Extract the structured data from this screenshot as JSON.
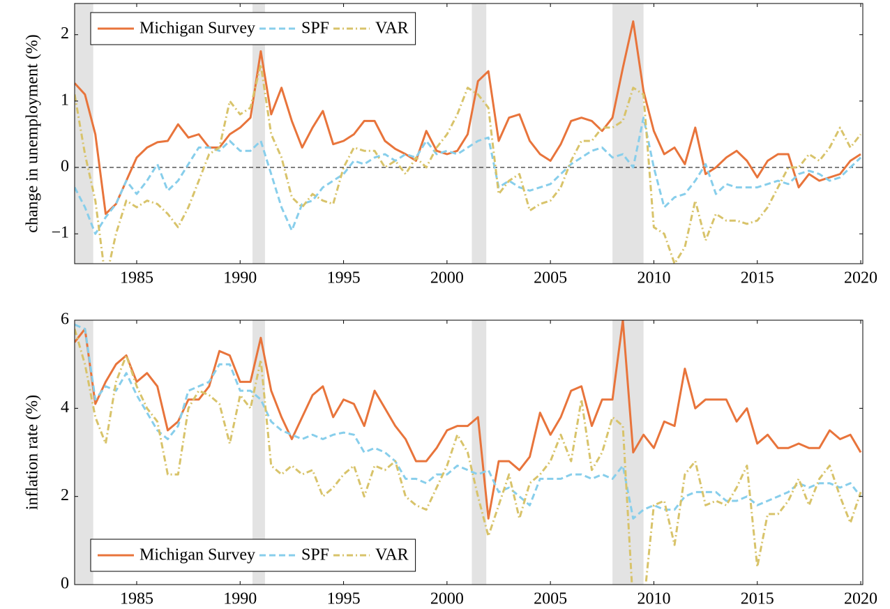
{
  "chart_data": [
    {
      "type": "line",
      "ylabel": "change in unemployment (%)",
      "legend": "upper left",
      "hline": 0,
      "xlim": [
        1982,
        2020.1
      ],
      "xticks": [
        1985,
        1990,
        1995,
        2000,
        2005,
        2010,
        2015,
        2020
      ],
      "ylim": [
        -1.45,
        2.47
      ],
      "yticks": [
        {
          "value": -1,
          "label": "−1"
        },
        0,
        1,
        2
      ],
      "recessions": [
        [
          1982,
          1982.9
        ],
        [
          1990.6,
          1991.2
        ],
        [
          2001.2,
          2001.9
        ],
        [
          2008,
          2009.5
        ]
      ],
      "x": [
        1982,
        1982.5,
        1983,
        1983.5,
        1984,
        1984.5,
        1985,
        1985.5,
        1986,
        1986.5,
        1987,
        1987.5,
        1988,
        1988.5,
        1989,
        1989.5,
        1990,
        1990.5,
        1991,
        1991.5,
        1992,
        1992.5,
        1993,
        1993.5,
        1994,
        1994.5,
        1995,
        1995.5,
        1996,
        1996.5,
        1997,
        1997.5,
        1998,
        1998.5,
        1999,
        1999.5,
        2000,
        2000.5,
        2001,
        2001.5,
        2002,
        2002.5,
        2003,
        2003.5,
        2004,
        2004.5,
        2005,
        2005.5,
        2006,
        2006.5,
        2007,
        2007.5,
        2008,
        2008.5,
        2009,
        2009.5,
        2010,
        2010.5,
        2011,
        2011.5,
        2012,
        2012.5,
        2013,
        2013.5,
        2014,
        2014.5,
        2015,
        2015.5,
        2016,
        2016.5,
        2017,
        2017.5,
        2018,
        2018.5,
        2019,
        2019.5,
        2020
      ],
      "series": [
        {
          "name": "Michigan Survey",
          "color": "#e8743b",
          "dash": "solid",
          "values": [
            1.27,
            1.1,
            0.5,
            -0.7,
            -0.55,
            -0.2,
            0.15,
            0.3,
            0.38,
            0.4,
            0.65,
            0.45,
            0.5,
            0.3,
            0.3,
            0.5,
            0.6,
            0.75,
            1.75,
            0.8,
            1.2,
            0.7,
            0.3,
            0.6,
            0.85,
            0.35,
            0.4,
            0.5,
            0.7,
            0.7,
            0.4,
            0.28,
            0.2,
            0.1,
            0.55,
            0.25,
            0.2,
            0.25,
            0.5,
            1.3,
            1.45,
            0.4,
            0.75,
            0.8,
            0.4,
            0.2,
            0.1,
            0.35,
            0.7,
            0.75,
            0.7,
            0.55,
            0.75,
            1.5,
            2.2,
            1.15,
            0.55,
            0.2,
            0.3,
            0.05,
            0.6,
            -0.1,
            0.0,
            0.15,
            0.25,
            0.1,
            -0.15,
            0.1,
            0.2,
            0.2,
            -0.3,
            -0.1,
            -0.2,
            -0.15,
            -0.1,
            0.1,
            0.2
          ]
        },
        {
          "name": "SPF",
          "color": "#87ceeb",
          "dash": "dashed",
          "values": [
            -0.3,
            -0.6,
            -1.0,
            -0.75,
            -0.55,
            -0.2,
            -0.4,
            -0.2,
            0.05,
            -0.35,
            -0.2,
            0.05,
            0.3,
            0.3,
            0.25,
            0.4,
            0.25,
            0.25,
            0.4,
            -0.1,
            -0.6,
            -0.95,
            -0.55,
            -0.5,
            -0.3,
            -0.2,
            -0.1,
            0.1,
            0.05,
            0.15,
            0.2,
            0.1,
            0.2,
            0.15,
            0.4,
            0.2,
            0.25,
            0.2,
            0.3,
            0.4,
            0.45,
            -0.3,
            -0.2,
            -0.3,
            -0.35,
            -0.3,
            -0.25,
            -0.1,
            0.05,
            0.15,
            0.25,
            0.3,
            0.15,
            0.2,
            0.0,
            0.75,
            0.0,
            -0.6,
            -0.45,
            -0.4,
            -0.2,
            0.05,
            -0.4,
            -0.25,
            -0.3,
            -0.3,
            -0.3,
            -0.25,
            -0.2,
            -0.25,
            -0.1,
            -0.05,
            -0.1,
            -0.2,
            -0.15,
            0.0,
            0.15
          ]
        },
        {
          "name": "VAR",
          "color": "#d8c36a",
          "dash": "dashdot",
          "values": [
            1.1,
            0.2,
            -0.5,
            -1.7,
            -1.0,
            -0.5,
            -0.6,
            -0.5,
            -0.55,
            -0.7,
            -0.9,
            -0.6,
            -0.2,
            0.2,
            0.3,
            1.0,
            0.8,
            0.9,
            1.55,
            0.5,
            0.15,
            -0.45,
            -0.6,
            -0.4,
            -0.5,
            -0.55,
            0.0,
            0.3,
            0.25,
            0.25,
            0.0,
            0.1,
            -0.1,
            0.15,
            0.0,
            0.3,
            0.5,
            0.8,
            1.2,
            1.1,
            0.9,
            -0.4,
            -0.2,
            -0.1,
            -0.65,
            -0.55,
            -0.5,
            -0.3,
            0.1,
            0.4,
            0.4,
            0.6,
            0.6,
            0.7,
            1.2,
            1.1,
            -0.9,
            -1.0,
            -1.45,
            -1.2,
            -0.5,
            -1.1,
            -0.7,
            -0.8,
            -0.8,
            -0.85,
            -0.8,
            -0.6,
            -0.3,
            0.0,
            0.0,
            0.2,
            0.1,
            0.3,
            0.6,
            0.3,
            0.5
          ]
        }
      ]
    },
    {
      "type": "line",
      "ylabel": "inflation rate (%)",
      "legend": "lower left",
      "xlim": [
        1982,
        2020.1
      ],
      "xticks": [
        1985,
        1990,
        1995,
        2000,
        2005,
        2010,
        2015,
        2020
      ],
      "ylim": [
        0,
        6
      ],
      "yticks": [
        0,
        2,
        4,
        6
      ],
      "recessions": [
        [
          1982,
          1982.9
        ],
        [
          1990.6,
          1991.2
        ],
        [
          2001.2,
          2001.9
        ],
        [
          2008,
          2009.5
        ]
      ],
      "x": [
        1982,
        1982.5,
        1983,
        1983.5,
        1984,
        1984.5,
        1985,
        1985.5,
        1986,
        1986.5,
        1987,
        1987.5,
        1988,
        1988.5,
        1989,
        1989.5,
        1990,
        1990.5,
        1991,
        1991.5,
        1992,
        1992.5,
        1993,
        1993.5,
        1994,
        1994.5,
        1995,
        1995.5,
        1996,
        1996.5,
        1997,
        1997.5,
        1998,
        1998.5,
        1999,
        1999.5,
        2000,
        2000.5,
        2001,
        2001.5,
        2002,
        2002.5,
        2003,
        2003.5,
        2004,
        2004.5,
        2005,
        2005.5,
        2006,
        2006.5,
        2007,
        2007.5,
        2008,
        2008.5,
        2009,
        2009.5,
        2010,
        2010.5,
        2011,
        2011.5,
        2012,
        2012.5,
        2013,
        2013.5,
        2014,
        2014.5,
        2015,
        2015.5,
        2016,
        2016.5,
        2017,
        2017.5,
        2018,
        2018.5,
        2019,
        2019.5,
        2020
      ],
      "series": [
        {
          "name": "Michigan Survey",
          "color": "#e8743b",
          "dash": "solid",
          "values": [
            5.5,
            5.8,
            4.1,
            4.6,
            5.0,
            5.2,
            4.6,
            4.8,
            4.5,
            3.5,
            3.7,
            4.2,
            4.2,
            4.5,
            5.3,
            5.2,
            4.6,
            4.6,
            5.6,
            4.4,
            3.8,
            3.3,
            3.8,
            4.3,
            4.5,
            3.8,
            4.2,
            4.1,
            3.6,
            4.4,
            4.0,
            3.6,
            3.3,
            2.8,
            2.8,
            3.1,
            3.5,
            3.6,
            3.6,
            3.8,
            1.5,
            2.8,
            2.8,
            2.6,
            2.9,
            3.9,
            3.4,
            3.8,
            4.4,
            4.5,
            3.6,
            4.2,
            4.2,
            6.0,
            3.0,
            3.4,
            3.1,
            3.7,
            3.6,
            4.9,
            4.0,
            4.2,
            4.2,
            4.2,
            3.7,
            4.0,
            3.2,
            3.4,
            3.1,
            3.1,
            3.2,
            3.1,
            3.1,
            3.5,
            3.3,
            3.4,
            3.0
          ]
        },
        {
          "name": "SPF",
          "color": "#87ceeb",
          "dash": "dashed",
          "values": [
            5.9,
            5.8,
            4.2,
            4.5,
            4.4,
            4.8,
            4.3,
            3.9,
            3.5,
            3.3,
            3.6,
            4.4,
            4.5,
            4.6,
            5.0,
            5.0,
            4.4,
            4.4,
            4.2,
            3.7,
            3.5,
            3.4,
            3.3,
            3.4,
            3.3,
            3.4,
            3.45,
            3.4,
            3.0,
            3.1,
            3.0,
            2.8,
            2.4,
            2.4,
            2.3,
            2.5,
            2.5,
            2.7,
            2.6,
            2.5,
            2.6,
            2.1,
            2.2,
            2.0,
            1.8,
            2.4,
            2.4,
            2.4,
            2.5,
            2.5,
            2.4,
            2.5,
            2.4,
            2.7,
            1.5,
            1.7,
            1.8,
            1.7,
            1.7,
            2.0,
            2.1,
            2.1,
            2.1,
            1.9,
            1.9,
            2.0,
            1.8,
            1.9,
            2.0,
            2.1,
            2.3,
            2.2,
            2.3,
            2.3,
            2.2,
            2.3,
            2.0
          ]
        },
        {
          "name": "VAR",
          "color": "#d8c36a",
          "dash": "dashdot",
          "values": [
            5.8,
            5.0,
            3.8,
            3.2,
            4.6,
            5.2,
            4.5,
            4.0,
            3.7,
            2.5,
            2.5,
            4.0,
            4.4,
            4.3,
            4.1,
            3.2,
            4.3,
            4.0,
            5.1,
            2.7,
            2.5,
            2.7,
            2.5,
            2.6,
            2.0,
            2.2,
            2.5,
            2.7,
            2.0,
            2.7,
            2.6,
            2.8,
            2.0,
            1.8,
            1.7,
            2.2,
            2.7,
            3.4,
            3.0,
            2.0,
            1.1,
            1.8,
            2.5,
            1.5,
            2.3,
            2.5,
            2.8,
            3.4,
            2.8,
            4.2,
            2.6,
            3.0,
            3.8,
            3.6,
            -0.5,
            -0.5,
            1.8,
            1.9,
            0.9,
            2.5,
            2.8,
            1.8,
            1.9,
            1.8,
            2.2,
            2.7,
            0.4,
            1.6,
            1.6,
            1.9,
            2.4,
            1.8,
            2.4,
            2.7,
            2.0,
            1.4,
            2.1
          ]
        }
      ]
    }
  ]
}
